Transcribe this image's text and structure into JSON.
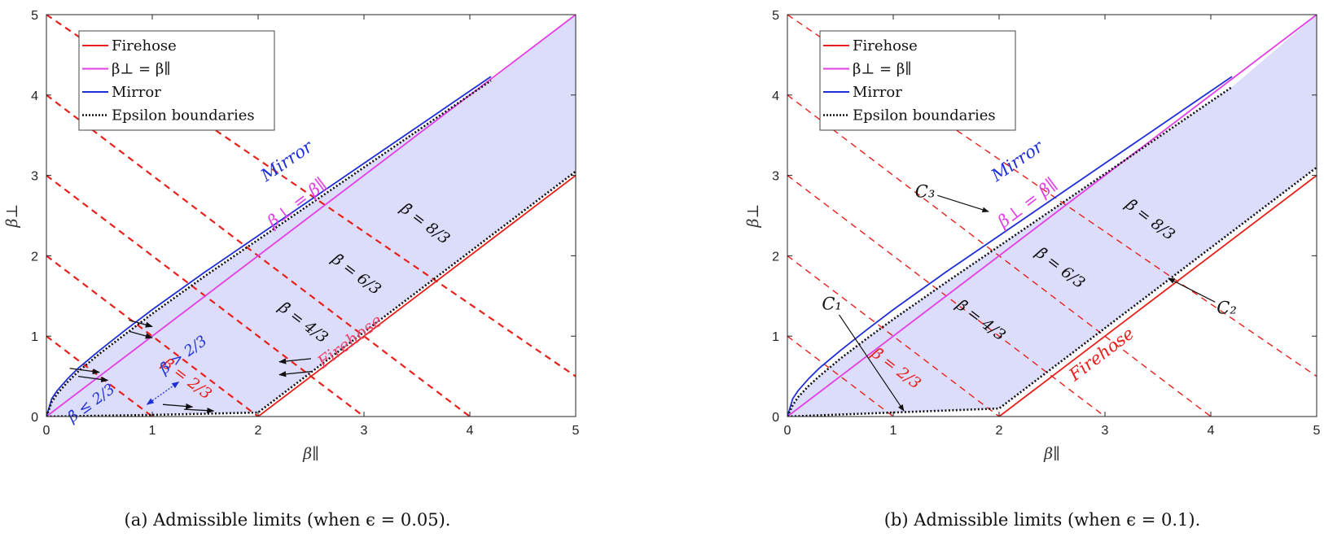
{
  "chart_data": [
    {
      "type": "line",
      "caption": "(a)  Admissible limits (when ϵ = 0.05).",
      "epsilon": 0.05,
      "xlabel": "β∥",
      "ylabel": "β⊥",
      "xlim": [
        0,
        5
      ],
      "ylim": [
        0,
        5
      ],
      "xticks": [
        "0",
        "1",
        "2",
        "3",
        "4",
        "5"
      ],
      "yticks": [
        "0",
        "1",
        "2",
        "3",
        "4",
        "5"
      ],
      "legend_position": "top-left",
      "legend": [
        {
          "label": "Firehose",
          "color": "#e8201a",
          "style": "solid"
        },
        {
          "label": "β⊥ = β∥",
          "color": "#e23ee6",
          "style": "solid"
        },
        {
          "label": "Mirror",
          "color": "#1f2fd6",
          "style": "solid"
        },
        {
          "label": "Epsilon boundaries",
          "color": "#111111",
          "style": "dotted"
        }
      ],
      "curves": {
        "firehose": {
          "label": "Firehose",
          "color": "#e8201a",
          "x": [
            2,
            5
          ],
          "y": [
            0,
            3
          ]
        },
        "equal": {
          "label": "β⊥ = β∥",
          "color": "#e23ee6",
          "x": [
            0,
            5
          ],
          "y": [
            0,
            5
          ]
        },
        "mirror": {
          "label": "Mirror",
          "color": "#1f2fd6",
          "x": [
            0,
            0.05,
            0.1,
            0.2,
            0.3,
            0.5,
            0.75,
            1.0,
            1.5,
            2.0,
            2.5,
            3.0,
            3.5,
            4.0,
            4.2
          ],
          "y": [
            0,
            0.22,
            0.32,
            0.47,
            0.6,
            0.82,
            1.08,
            1.33,
            1.8,
            2.25,
            2.7,
            3.15,
            3.6,
            4.05,
            4.23
          ]
        },
        "epsilon_upper": {
          "label": "Epsilon boundaries",
          "color": "#111111",
          "x": [
            0,
            0.05,
            0.1,
            0.2,
            0.3,
            0.5,
            0.75,
            1.0,
            1.5,
            2.0,
            2.5,
            3.0,
            3.5,
            4.0,
            4.2
          ],
          "y": [
            0,
            0.18,
            0.28,
            0.43,
            0.56,
            0.78,
            1.03,
            1.28,
            1.75,
            2.2,
            2.65,
            3.1,
            3.55,
            4.0,
            4.18
          ]
        },
        "epsilon_lower": {
          "label": "Epsilon boundaries",
          "color": "#111111",
          "x": [
            0,
            1.0,
            2.0,
            5.0
          ],
          "y": [
            0,
            0.02,
            0.05,
            3.05
          ]
        }
      },
      "shaded_region_color": "#dcdcfb",
      "isolines": [
        {
          "label": "β̄ = 2/3",
          "color": "#e8201a",
          "x": [
            0,
            1
          ],
          "y": [
            1,
            0
          ],
          "label_x": 1.3,
          "label_y": 0.42
        },
        {
          "label": "β̄ = 4/3",
          "color": "#111111",
          "x": [
            0,
            2
          ],
          "y": [
            2,
            0
          ],
          "label_x": 2.4,
          "label_y": 1.12
        },
        {
          "label": "β̄ = 6/3",
          "color": "#111111",
          "x": [
            0,
            3
          ],
          "y": [
            3,
            0
          ],
          "label_x": 2.9,
          "label_y": 1.72
        },
        {
          "label": "β̄ = 8/3",
          "color": "#111111",
          "x": [
            0,
            4
          ],
          "y": [
            4,
            0
          ],
          "label_x": 3.55,
          "label_y": 2.35
        },
        {
          "label": "",
          "color": "#111111",
          "x": [
            0,
            5
          ],
          "y": [
            5,
            0.5
          ]
        }
      ],
      "curve_labels": [
        {
          "text": "Mirror",
          "color": "#1f2fd6",
          "x": 2.3,
          "y": 3.12,
          "angle_from": "mirror"
        },
        {
          "text": "β⊥ = β∥",
          "color": "#e23ee6",
          "x": 2.4,
          "y": 2.6,
          "angle_from": "equal"
        },
        {
          "text": "Firehose",
          "color": "#e8466b",
          "x": 2.9,
          "y": 0.88,
          "angle_from": "firehose"
        }
      ],
      "annotations": [
        {
          "text": "β̄ > 2/3",
          "color": "#1f2fd6",
          "x": 1.32,
          "y": 0.72
        },
        {
          "text": "β̄ ≤ 2/3",
          "color": "#1f2fd6",
          "x": 0.45,
          "y": 0.12
        }
      ],
      "small_arrows": [
        {
          "x0": 0.78,
          "y0": 1.2,
          "x1": 1.0,
          "y1": 1.12
        },
        {
          "x0": 0.78,
          "y0": 1.06,
          "x1": 1.0,
          "y1": 0.98
        },
        {
          "x0": 0.22,
          "y0": 0.6,
          "x1": 0.5,
          "y1": 0.55
        },
        {
          "x0": 0.3,
          "y0": 0.5,
          "x1": 0.58,
          "y1": 0.45
        },
        {
          "x0": 1.1,
          "y0": 0.15,
          "x1": 1.38,
          "y1": 0.12
        },
        {
          "x0": 1.3,
          "y0": 0.09,
          "x1": 1.58,
          "y1": 0.07
        },
        {
          "x0": 2.5,
          "y0": 0.72,
          "x1": 2.2,
          "y1": 0.68
        },
        {
          "x0": 2.5,
          "y0": 0.56,
          "x1": 2.2,
          "y1": 0.52
        }
      ],
      "bidir_arrow": {
        "x0": 0.95,
        "y0": 0.15,
        "x1": 1.25,
        "y1": 0.43,
        "color": "#1f2fd6"
      }
    },
    {
      "type": "line",
      "caption": "(b)  Admissible limits (when ϵ = 0.1).",
      "epsilon": 0.1,
      "xlabel": "β∥",
      "ylabel": "β⊥",
      "xlim": [
        0,
        5
      ],
      "ylim": [
        0,
        5
      ],
      "xticks": [
        "0",
        "1",
        "2",
        "3",
        "4",
        "5"
      ],
      "yticks": [
        "0",
        "1",
        "2",
        "3",
        "4",
        "5"
      ],
      "legend_position": "top-left",
      "legend": [
        {
          "label": "Firehose",
          "color": "#e8201a",
          "style": "solid"
        },
        {
          "label": "β⊥ = β∥",
          "color": "#e23ee6",
          "style": "solid"
        },
        {
          "label": "Mirror",
          "color": "#1f2fd6",
          "style": "solid"
        },
        {
          "label": "Epsilon boundaries",
          "color": "#111111",
          "style": "dotted"
        }
      ],
      "curves": {
        "firehose": {
          "label": "Firehose",
          "color": "#e8201a",
          "x": [
            2,
            5
          ],
          "y": [
            0,
            3
          ]
        },
        "equal": {
          "label": "β⊥ = β∥",
          "color": "#e23ee6",
          "x": [
            0,
            5
          ],
          "y": [
            0,
            5
          ]
        },
        "mirror": {
          "label": "Mirror",
          "color": "#1f2fd6",
          "x": [
            0,
            0.05,
            0.1,
            0.2,
            0.3,
            0.5,
            0.75,
            1.0,
            1.5,
            2.0,
            2.5,
            3.0,
            3.5,
            4.0,
            4.2
          ],
          "y": [
            0,
            0.22,
            0.32,
            0.47,
            0.6,
            0.82,
            1.08,
            1.33,
            1.8,
            2.25,
            2.7,
            3.15,
            3.6,
            4.05,
            4.23
          ]
        },
        "epsilon_upper": {
          "label": "Epsilon boundaries",
          "color": "#111111",
          "x": [
            0,
            0.05,
            0.1,
            0.2,
            0.3,
            0.5,
            0.75,
            1.0,
            1.5,
            2.0,
            2.5,
            3.0,
            3.5,
            4.0,
            4.2
          ],
          "y": [
            0,
            0.14,
            0.24,
            0.38,
            0.5,
            0.72,
            0.97,
            1.21,
            1.67,
            2.12,
            2.57,
            3.02,
            3.47,
            3.92,
            4.1
          ]
        },
        "epsilon_lower": {
          "label": "Epsilon boundaries",
          "color": "#111111",
          "x": [
            0,
            1.0,
            2.0,
            5.0
          ],
          "y": [
            0,
            0.05,
            0.1,
            3.1
          ]
        }
      },
      "shaded_region_color": "#dcdcfb",
      "isolines": [
        {
          "label": "β̄ = 2/3",
          "color": "#e8201a",
          "x": [
            0,
            1
          ],
          "y": [
            1,
            0
          ],
          "label_x": 1.0,
          "label_y": 0.55
        },
        {
          "label": "β̄ = 4/3",
          "color": "#111111",
          "x": [
            0,
            2
          ],
          "y": [
            2,
            0
          ],
          "label_x": 1.8,
          "label_y": 1.15
        },
        {
          "label": "β̄ = 6/3",
          "color": "#111111",
          "x": [
            0,
            3
          ],
          "y": [
            3,
            0
          ],
          "label_x": 2.55,
          "label_y": 1.8
        },
        {
          "label": "β̄ = 8/3",
          "color": "#111111",
          "x": [
            0,
            4
          ],
          "y": [
            4,
            0
          ],
          "label_x": 3.4,
          "label_y": 2.4
        },
        {
          "label": "",
          "color": "#111111",
          "x": [
            0,
            5
          ],
          "y": [
            5,
            0.5
          ]
        }
      ],
      "curve_labels": [
        {
          "text": "Mirror",
          "color": "#1f2fd6",
          "x": 2.2,
          "y": 3.12,
          "angle_from": "mirror"
        },
        {
          "text": "β⊥ = β∥",
          "color": "#e23ee6",
          "x": 2.3,
          "y": 2.6,
          "angle_from": "equal"
        },
        {
          "text": "Firehose",
          "color": "#e8201a",
          "x": 3.0,
          "y": 0.72,
          "angle_from": "firehose"
        }
      ],
      "labeled_points": [
        {
          "text": "C₁",
          "x": 0.42,
          "y": 1.4,
          "tx": 1.1,
          "ty": 0.07
        },
        {
          "text": "C₂",
          "x": 4.15,
          "y": 1.35,
          "tx": 3.6,
          "ty": 1.72
        },
        {
          "text": "C₃",
          "x": 1.3,
          "y": 2.8,
          "tx": 1.9,
          "ty": 2.55
        }
      ]
    }
  ]
}
